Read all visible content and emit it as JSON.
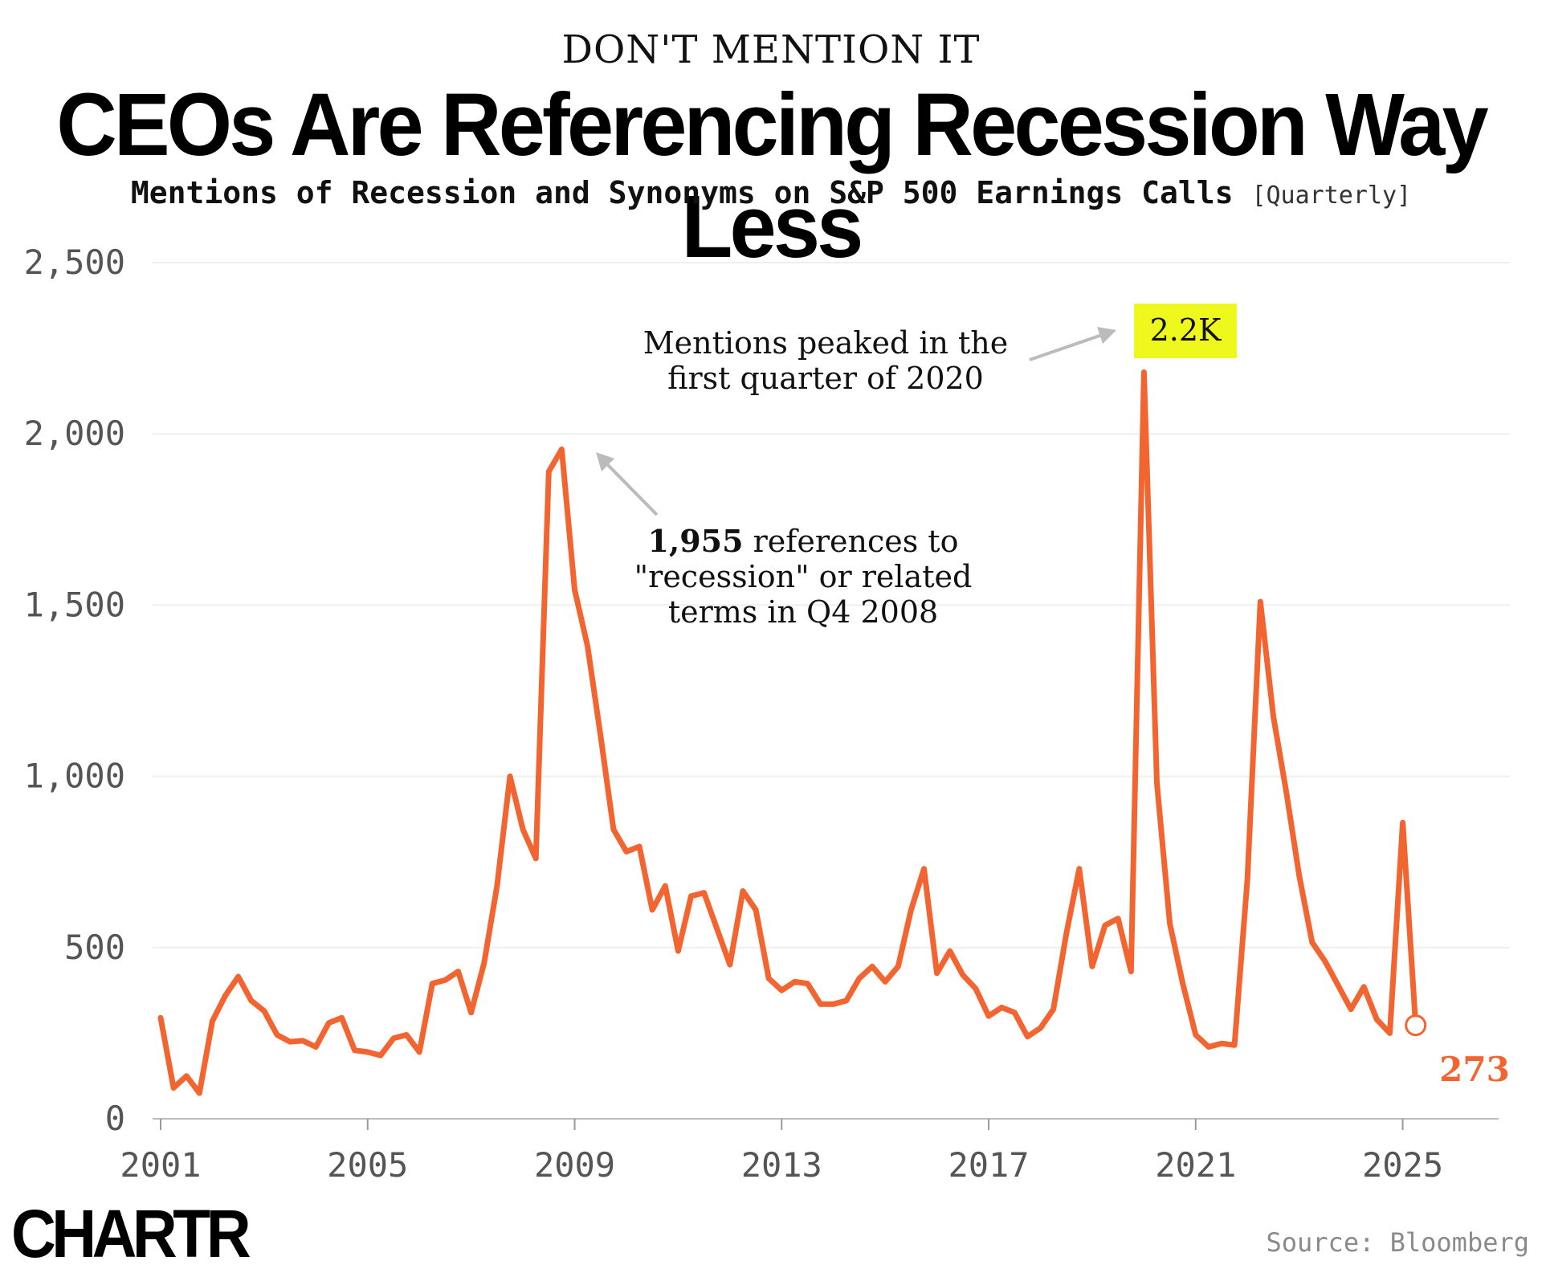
{
  "kicker": "DON'T MENTION IT",
  "title": "CEOs Are Referencing Recession Way Less",
  "subtitle": "Mentions of Recession and Synonyms on S&P 500 Earnings Calls",
  "subtitle_frequency": "[Quarterly]",
  "brand": "CHARTR",
  "source": "Source: Bloomberg",
  "annotations": {
    "peak_2020_text": [
      "Mentions peaked in the",
      "first quarter of 2020"
    ],
    "peak_2020_badge": "2.2K",
    "peak_2008_bold": "1,955",
    "peak_2008_lines": [
      " references to",
      "\"recession\" or related",
      "terms in Q4 2008"
    ],
    "last_value_label": "273"
  },
  "colors": {
    "line": "#f26430",
    "badge_bg": "#eef81c",
    "grid": "#efefef",
    "axis_text": "#555555",
    "arrow": "#bbbbbb"
  },
  "chart_data": {
    "type": "line",
    "title": "CEOs Are Referencing Recession Way Less",
    "subtitle": "Mentions of Recession and Synonyms on S&P 500 Earnings Calls [Quarterly]",
    "xlabel": "",
    "ylabel": "",
    "ylim": [
      0,
      2500
    ],
    "xlim": [
      2001,
      2026
    ],
    "yticks": [
      0,
      500,
      1000,
      1500,
      2000,
      2500
    ],
    "ytick_labels": [
      "0",
      "500",
      "1,000",
      "1,500",
      "2,000",
      "2,500"
    ],
    "xticks": [
      2001,
      2005,
      2009,
      2013,
      2017,
      2021,
      2025
    ],
    "xtick_labels": [
      "2001",
      "2005",
      "2009",
      "2013",
      "2017",
      "2021",
      "2025"
    ],
    "grid": true,
    "legend": "none",
    "series": [
      {
        "values": [
          [
            2001.0,
            295
          ],
          [
            2001.25,
            90
          ],
          [
            2001.5,
            125
          ],
          [
            2001.75,
            75
          ],
          [
            2002.0,
            285
          ],
          [
            2002.25,
            360
          ],
          [
            2002.5,
            415
          ],
          [
            2002.75,
            345
          ],
          [
            2003.0,
            315
          ],
          [
            2003.25,
            245
          ],
          [
            2003.5,
            225
          ],
          [
            2003.75,
            228
          ],
          [
            2004.0,
            210
          ],
          [
            2004.25,
            280
          ],
          [
            2004.5,
            295
          ],
          [
            2004.75,
            200
          ],
          [
            2005.0,
            195
          ],
          [
            2005.25,
            185
          ],
          [
            2005.5,
            235
          ],
          [
            2005.75,
            245
          ],
          [
            2006.0,
            195
          ],
          [
            2006.25,
            395
          ],
          [
            2006.5,
            405
          ],
          [
            2006.75,
            430
          ],
          [
            2007.0,
            310
          ],
          [
            2007.25,
            455
          ],
          [
            2007.5,
            680
          ],
          [
            2007.75,
            1000
          ],
          [
            2008.0,
            845
          ],
          [
            2008.25,
            760
          ],
          [
            2008.5,
            1890
          ],
          [
            2008.75,
            1955
          ],
          [
            2009.0,
            1545
          ],
          [
            2009.25,
            1380
          ],
          [
            2009.5,
            1120
          ],
          [
            2009.75,
            845
          ],
          [
            2010.0,
            780
          ],
          [
            2010.25,
            795
          ],
          [
            2010.5,
            610
          ],
          [
            2010.75,
            680
          ],
          [
            2011.0,
            490
          ],
          [
            2011.25,
            650
          ],
          [
            2011.5,
            660
          ],
          [
            2011.75,
            555
          ],
          [
            2012.0,
            450
          ],
          [
            2012.25,
            665
          ],
          [
            2012.5,
            610
          ],
          [
            2012.75,
            410
          ],
          [
            2013.0,
            375
          ],
          [
            2013.25,
            400
          ],
          [
            2013.5,
            395
          ],
          [
            2013.75,
            335
          ],
          [
            2014.0,
            335
          ],
          [
            2014.25,
            345
          ],
          [
            2014.5,
            410
          ],
          [
            2014.75,
            445
          ],
          [
            2015.0,
            400
          ],
          [
            2015.25,
            445
          ],
          [
            2015.5,
            610
          ],
          [
            2015.75,
            730
          ],
          [
            2016.0,
            425
          ],
          [
            2016.25,
            490
          ],
          [
            2016.5,
            420
          ],
          [
            2016.75,
            380
          ],
          [
            2017.0,
            300
          ],
          [
            2017.25,
            325
          ],
          [
            2017.5,
            310
          ],
          [
            2017.75,
            240
          ],
          [
            2018.0,
            265
          ],
          [
            2018.25,
            320
          ],
          [
            2018.5,
            540
          ],
          [
            2018.75,
            730
          ],
          [
            2019.0,
            445
          ],
          [
            2019.25,
            565
          ],
          [
            2019.5,
            585
          ],
          [
            2019.75,
            430
          ],
          [
            2020.0,
            2180
          ],
          [
            2020.25,
            980
          ],
          [
            2020.5,
            570
          ],
          [
            2020.75,
            395
          ],
          [
            2021.0,
            245
          ],
          [
            2021.25,
            210
          ],
          [
            2021.5,
            220
          ],
          [
            2021.75,
            215
          ],
          [
            2022.0,
            700
          ],
          [
            2022.25,
            1510
          ],
          [
            2022.5,
            1175
          ],
          [
            2022.75,
            955
          ],
          [
            2023.0,
            710
          ],
          [
            2023.25,
            515
          ],
          [
            2023.5,
            460
          ],
          [
            2023.75,
            390
          ],
          [
            2024.0,
            320
          ],
          [
            2024.25,
            385
          ],
          [
            2024.5,
            290
          ],
          [
            2024.75,
            250
          ],
          [
            2025.0,
            865
          ],
          [
            2025.25,
            273
          ]
        ]
      }
    ]
  }
}
